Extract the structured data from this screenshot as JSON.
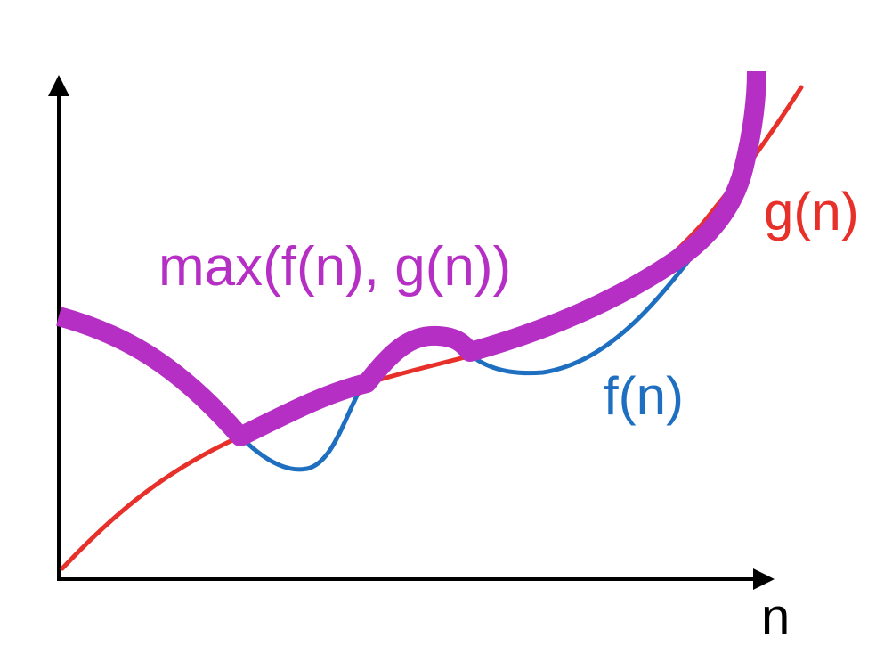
{
  "labels": {
    "max": "max(f(n), g(n))",
    "g": "g(n)",
    "f": "f(n)",
    "x_axis": "n"
  },
  "colors": {
    "max": "#b62fc4",
    "g": "#e8302a",
    "f": "#1f6fc1",
    "axis": "#000000"
  },
  "icons": {
    "x_arrow": "arrow-right-icon",
    "y_arrow": "arrow-up-icon"
  }
}
